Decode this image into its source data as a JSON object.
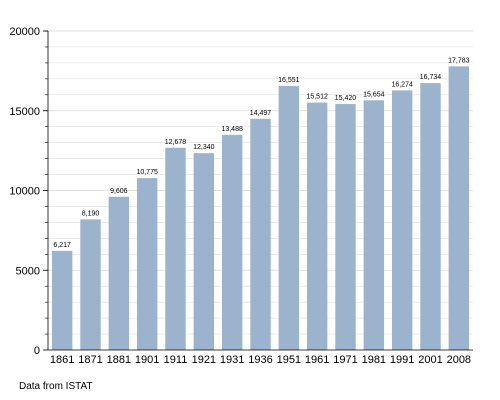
{
  "chart_data": {
    "type": "bar",
    "categories": [
      "1861",
      "1871",
      "1881",
      "1901",
      "1911",
      "1921",
      "1931",
      "1936",
      "1951",
      "1961",
      "1971",
      "1981",
      "1991",
      "2001",
      "2008"
    ],
    "values": [
      6217,
      8190,
      9606,
      10775,
      12678,
      12340,
      13488,
      14497,
      16551,
      15512,
      15420,
      15654,
      16274,
      16734,
      17783
    ],
    "value_labels": [
      "6,217",
      "8,190",
      "9,606",
      "10,775",
      "12,678",
      "12,340",
      "13,488",
      "14,497",
      "16,551",
      "15,512",
      "15,420",
      "15,654",
      "16,274",
      "16,734",
      "17,783"
    ],
    "y_ticks": [
      "0",
      "5000",
      "10000",
      "15000",
      "20000"
    ],
    "ylim": [
      0,
      20000
    ],
    "grid": true,
    "bar_color": "#9bb3cc",
    "grid_color": "#d9d9d9"
  },
  "source_note": "Data from ISTAT"
}
